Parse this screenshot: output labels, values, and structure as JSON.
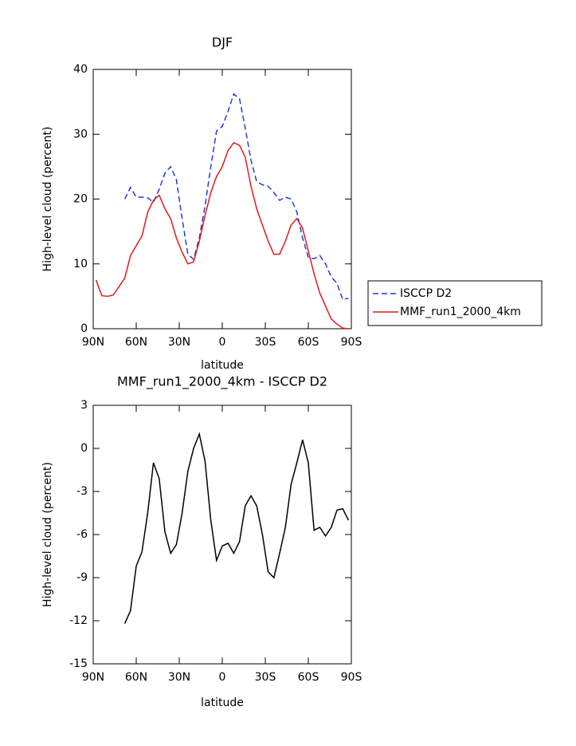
{
  "chart_data": [
    {
      "type": "line",
      "title": "DJF",
      "x_label": "latitude",
      "y_label": "High-level cloud (percent)",
      "x": [
        88,
        84,
        80,
        76,
        72,
        68,
        64,
        60,
        56,
        52,
        48,
        44,
        40,
        36,
        32,
        28,
        24,
        20,
        16,
        12,
        8,
        4,
        0,
        -4,
        -8,
        -12,
        -16,
        -20,
        -24,
        -28,
        -32,
        -36,
        -40,
        -44,
        -48,
        -52,
        -56,
        -60,
        -64,
        -68,
        -72,
        -76,
        -80,
        -84,
        -88
      ],
      "series": [
        {
          "name": "ISCCP D2",
          "color": "#1f3fd8",
          "linestyle": "dashed",
          "values": [
            null,
            null,
            null,
            null,
            null,
            20,
            21.8,
            20.3,
            20.3,
            20.2,
            19.5,
            21.5,
            24,
            25,
            23,
            17,
            11.5,
            10.7,
            14,
            19,
            25,
            30.5,
            31.2,
            33.5,
            36.2,
            35.5,
            31,
            26,
            22.7,
            22.2,
            22,
            21,
            19.8,
            20.3,
            20,
            18,
            14,
            11,
            10.8,
            11.3,
            10,
            8,
            7,
            4.5,
            4.7
          ]
        },
        {
          "name": "MMF_run1_2000_4km",
          "color": "#e41a1c",
          "linestyle": "solid",
          "values": [
            7.5,
            5.1,
            5,
            5.2,
            6.5,
            7.8,
            11.3,
            12.8,
            14.3,
            18,
            19.8,
            20.6,
            18.5,
            17,
            14,
            11.8,
            10,
            10.3,
            13.5,
            17.5,
            21,
            23.5,
            25,
            27.5,
            28.7,
            28.3,
            26.5,
            22,
            18.5,
            16,
            13.5,
            11.5,
            11.5,
            13.5,
            16,
            17,
            15.5,
            12,
            8.5,
            5.5,
            3.5,
            1.5,
            0.7,
            0.1,
            0
          ]
        }
      ],
      "xlim": [
        90,
        -90
      ],
      "xticks": [
        {
          "value": 90,
          "label": "90N"
        },
        {
          "value": 60,
          "label": "60N"
        },
        {
          "value": 30,
          "label": "30N"
        },
        0,
        {
          "value": -30,
          "label": "30S"
        },
        {
          "value": -60,
          "label": "60S"
        },
        {
          "value": -90,
          "label": "90S"
        }
      ],
      "ylim": [
        0,
        40
      ],
      "yticks": [
        0,
        10,
        20,
        30,
        40
      ],
      "legend": "right"
    },
    {
      "type": "line",
      "title": "MMF_run1_2000_4km - ISCCP D2",
      "x_label": "latitude",
      "y_label": "High-level cloud (percent)",
      "x": [
        88,
        84,
        80,
        76,
        72,
        68,
        64,
        60,
        56,
        52,
        48,
        44,
        40,
        36,
        32,
        28,
        24,
        20,
        16,
        12,
        8,
        4,
        0,
        -4,
        -8,
        -12,
        -16,
        -20,
        -24,
        -28,
        -32,
        -36,
        -40,
        -44,
        -48,
        -52,
        -56,
        -60,
        -64,
        -68,
        -72,
        -76,
        -80,
        -84,
        -88
      ],
      "color": "#000000",
      "values": [
        null,
        null,
        null,
        null,
        null,
        -12.2,
        -11.3,
        -8.2,
        -7.2,
        -4.5,
        -1,
        -2.1,
        -5.8,
        -7.3,
        -6.7,
        -4.5,
        -1.6,
        0,
        1,
        -0.9,
        -5,
        -7.8,
        -6.8,
        -6.6,
        -7.3,
        -6.5,
        -4,
        -3.3,
        -4,
        -6,
        -8.6,
        -9,
        -7.3,
        -5.5,
        -2.5,
        -1,
        0.6,
        -1,
        -5.7,
        -5.5,
        -6.1,
        -5.5,
        -4.3,
        -4.2,
        -5
      ],
      "xlim": [
        90,
        -90
      ],
      "xticks": [
        {
          "value": 90,
          "label": "90N"
        },
        {
          "value": 60,
          "label": "60N"
        },
        {
          "value": 30,
          "label": "30N"
        },
        0,
        {
          "value": -30,
          "label": "30S"
        },
        {
          "value": -60,
          "label": "60S"
        },
        {
          "value": -90,
          "label": "90S"
        }
      ],
      "ylim": [
        -15,
        3
      ],
      "yticks": [
        -15,
        -12,
        -9,
        -6,
        -3,
        0,
        3
      ]
    }
  ]
}
